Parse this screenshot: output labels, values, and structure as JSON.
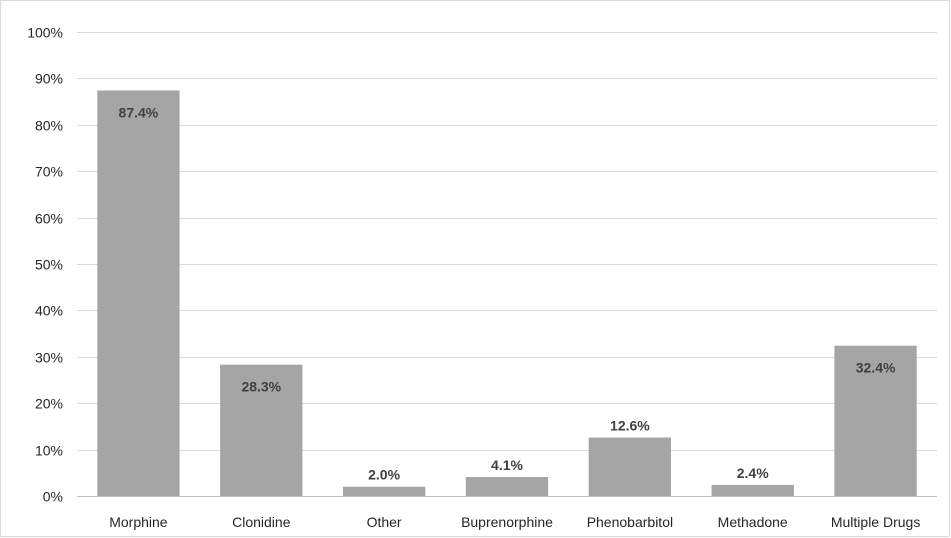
{
  "chart_data": {
    "type": "bar",
    "title": "",
    "xlabel": "",
    "ylabel": "",
    "categories": [
      "Morphine",
      "Clonidine",
      "Other",
      "Buprenorphine",
      "Phenobarbitol",
      "Methadone",
      "Multiple Drugs"
    ],
    "values": [
      87.4,
      28.3,
      2.0,
      4.1,
      12.6,
      2.4,
      32.4
    ],
    "data_labels": [
      "87.4%",
      "28.3%",
      "2.0%",
      "4.1%",
      "12.6%",
      "2.4%",
      "32.4%"
    ],
    "ylim": [
      0,
      100
    ],
    "y_ticks": [
      0,
      10,
      20,
      30,
      40,
      50,
      60,
      70,
      80,
      90,
      100
    ],
    "y_tick_labels": [
      "0%",
      "10%",
      "20%",
      "30%",
      "40%",
      "50%",
      "60%",
      "70%",
      "80%",
      "90%",
      "100%"
    ],
    "grid": true,
    "legend": "none",
    "bar_color": "#a5a5a5",
    "label_inside_threshold": 20
  }
}
